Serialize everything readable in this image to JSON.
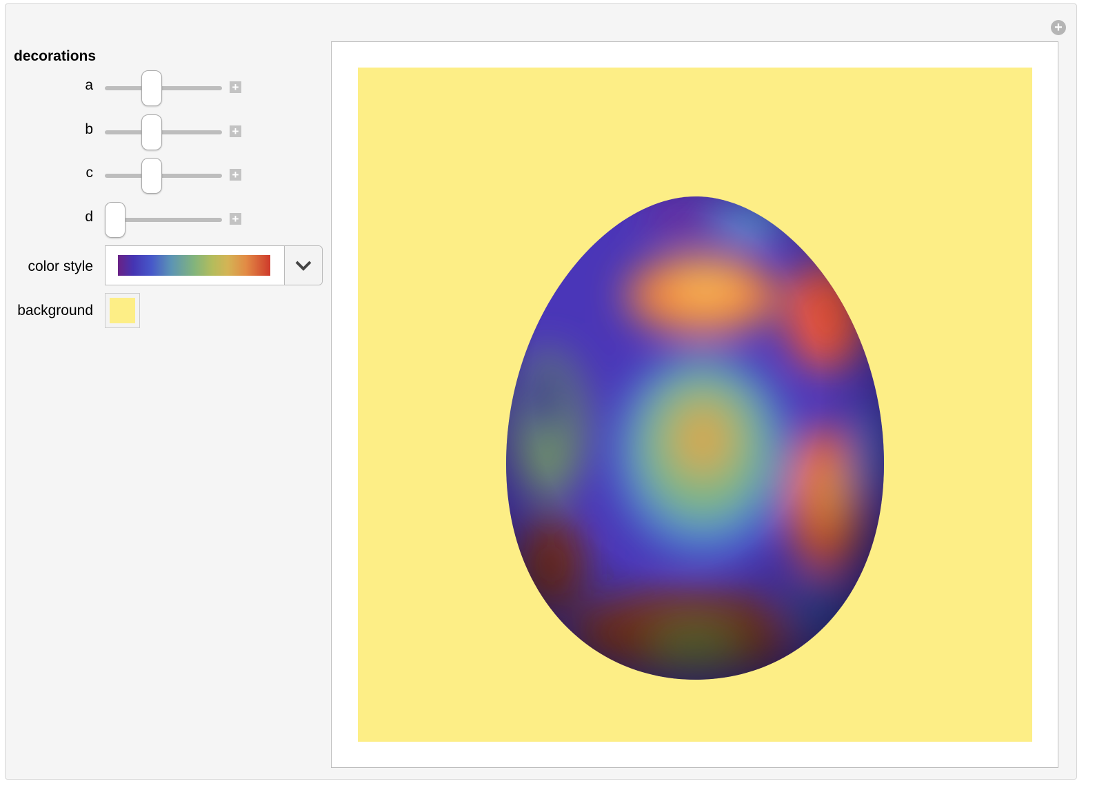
{
  "panel": {
    "title": "decorations"
  },
  "sliders": [
    {
      "label": "a",
      "value_fraction": 0.38
    },
    {
      "label": "b",
      "value_fraction": 0.38
    },
    {
      "label": "c",
      "value_fraction": 0.38
    },
    {
      "label": "d",
      "value_fraction": 0.0
    }
  ],
  "color_style": {
    "label": "color style",
    "selected": "rainbow gradient"
  },
  "background": {
    "label": "background",
    "color": "#fdee86"
  },
  "icons": {
    "corner": "plus-circle-icon",
    "increment": "plus-square-icon",
    "dropdown": "chevron-down-icon"
  }
}
